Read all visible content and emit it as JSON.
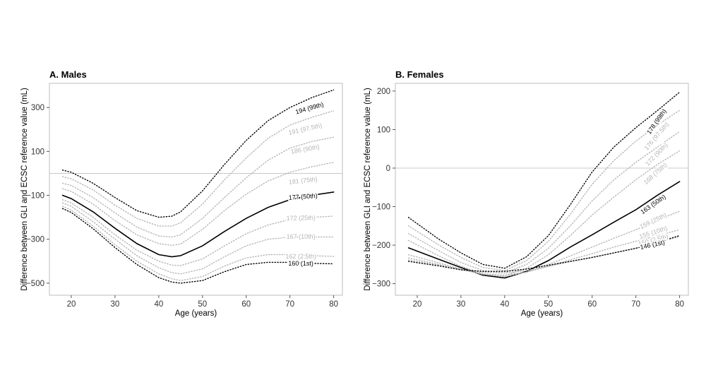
{
  "chart_data": [
    {
      "type": "line",
      "title": "A. Males",
      "xlabel": "Age (years)",
      "ylabel": "Difference between GLI and ECSC reference value (mL)",
      "xlim": [
        15,
        82
      ],
      "ylim": [
        -555,
        410
      ],
      "xticks": [
        20,
        30,
        40,
        50,
        60,
        70,
        80
      ],
      "yticks": [
        300,
        100,
        -100,
        -300,
        -500
      ],
      "reference_line_y": 0,
      "grid": false,
      "series": [
        {
          "name": "194 (99th)",
          "color": "#000000",
          "style": "dotted",
          "x": [
            18,
            20,
            25,
            30,
            35,
            40,
            43,
            45,
            50,
            55,
            60,
            65,
            70,
            75,
            80
          ],
          "y": [
            15,
            5,
            -45,
            -110,
            -170,
            -200,
            -195,
            -175,
            -80,
            40,
            150,
            240,
            300,
            345,
            380
          ]
        },
        {
          "name": "191 (97.5th)",
          "color": "#b5b5b5",
          "style": "dotted",
          "x": [
            18,
            20,
            25,
            30,
            35,
            40,
            43,
            45,
            50,
            55,
            60,
            65,
            70,
            75,
            80
          ],
          "y": [
            -15,
            -25,
            -75,
            -145,
            -205,
            -240,
            -240,
            -225,
            -140,
            -30,
            70,
            160,
            220,
            255,
            285
          ]
        },
        {
          "name": "186 (90th)",
          "color": "#b5b5b5",
          "style": "dotted",
          "x": [
            18,
            20,
            25,
            30,
            35,
            40,
            43,
            45,
            50,
            55,
            60,
            65,
            70,
            75,
            80
          ],
          "y": [
            -45,
            -55,
            -110,
            -180,
            -245,
            -285,
            -290,
            -280,
            -205,
            -110,
            -20,
            60,
            115,
            145,
            165
          ]
        },
        {
          "name": "181 (75th)",
          "color": "#b5b5b5",
          "style": "dotted",
          "x": [
            18,
            20,
            25,
            30,
            35,
            40,
            43,
            45,
            50,
            55,
            60,
            65,
            70,
            75,
            80
          ],
          "y": [
            -70,
            -82,
            -140,
            -215,
            -280,
            -320,
            -328,
            -322,
            -255,
            -170,
            -95,
            -35,
            5,
            30,
            50
          ]
        },
        {
          "name": "177 (50th)",
          "color": "#000000",
          "style": "solid",
          "x": [
            18,
            20,
            25,
            30,
            35,
            40,
            43,
            45,
            50,
            55,
            60,
            65,
            70,
            75,
            80
          ],
          "y": [
            -100,
            -115,
            -175,
            -250,
            -320,
            -370,
            -380,
            -375,
            -330,
            -265,
            -205,
            -155,
            -120,
            -100,
            -85
          ]
        },
        {
          "name": "172 (25th)",
          "color": "#b5b5b5",
          "style": "dotted",
          "x": [
            18,
            20,
            25,
            30,
            35,
            40,
            43,
            45,
            50,
            55,
            60,
            65,
            70,
            75,
            80
          ],
          "y": [
            -120,
            -135,
            -200,
            -280,
            -350,
            -400,
            -418,
            -420,
            -390,
            -330,
            -275,
            -235,
            -210,
            -200,
            -195
          ]
        },
        {
          "name": "167 (10th)",
          "color": "#b5b5b5",
          "style": "dotted",
          "x": [
            18,
            20,
            25,
            30,
            35,
            40,
            43,
            45,
            50,
            55,
            60,
            65,
            70,
            75,
            80
          ],
          "y": [
            -135,
            -150,
            -220,
            -300,
            -375,
            -430,
            -452,
            -458,
            -435,
            -380,
            -330,
            -300,
            -290,
            -290,
            -290
          ]
        },
        {
          "name": "162 (2.5th)",
          "color": "#b5b5b5",
          "style": "dotted",
          "x": [
            18,
            20,
            25,
            30,
            35,
            40,
            43,
            45,
            50,
            55,
            60,
            65,
            70,
            75,
            80
          ],
          "y": [
            -150,
            -168,
            -240,
            -325,
            -400,
            -458,
            -480,
            -488,
            -470,
            -422,
            -385,
            -370,
            -370,
            -375,
            -378
          ]
        },
        {
          "name": "160 (1st)",
          "color": "#000000",
          "style": "dotted",
          "x": [
            18,
            20,
            25,
            30,
            35,
            40,
            43,
            45,
            50,
            55,
            60,
            65,
            70,
            75,
            80
          ],
          "y": [
            -160,
            -178,
            -252,
            -338,
            -415,
            -475,
            -495,
            -500,
            -488,
            -448,
            -415,
            -405,
            -405,
            -410,
            -412
          ]
        }
      ],
      "curve_labels": [
        {
          "text": "194 (99th)",
          "color": "#000000",
          "x": 74.5,
          "y": 295,
          "angle": -16
        },
        {
          "text": "191 (97.5th)",
          "color": "#b5b5b5",
          "x": 73.5,
          "y": 200,
          "angle": -13
        },
        {
          "text": "186 (90th)",
          "color": "#b5b5b5",
          "x": 73.5,
          "y": 108,
          "angle": -10
        },
        {
          "text": "181 (75th)",
          "color": "#b5b5b5",
          "x": 73.0,
          "y": -35,
          "angle": -6
        },
        {
          "text": "177 (50th)",
          "color": "#000000",
          "x": 73.0,
          "y": -108,
          "angle": -4
        },
        {
          "text": "172 (25th)",
          "color": "#b5b5b5",
          "x": 72.5,
          "y": -205,
          "angle": -1
        },
        {
          "text": "167 (10th)",
          "color": "#b5b5b5",
          "x": 72.5,
          "y": -290,
          "angle": 0
        },
        {
          "text": "162 (2.5th)",
          "color": "#b5b5b5",
          "x": 72.5,
          "y": -380,
          "angle": 0
        },
        {
          "text": "160 (1st)",
          "color": "#000000",
          "x": 72.5,
          "y": -412,
          "angle": 0
        }
      ]
    },
    {
      "type": "line",
      "title": "B. Females",
      "xlabel": "Age (years)",
      "ylabel": "Difference between GLI and ECSC reference value (mL)",
      "xlim": [
        15,
        82
      ],
      "ylim": [
        -330,
        220
      ],
      "xticks": [
        20,
        30,
        40,
        50,
        60,
        70,
        80
      ],
      "yticks": [
        200,
        100,
        0,
        -100,
        -200,
        -300
      ],
      "reference_line_y": 0,
      "grid": false,
      "series": [
        {
          "name": "178 (99th)",
          "color": "#000000",
          "style": "dotted",
          "x": [
            18,
            25,
            30,
            35,
            40,
            45,
            50,
            55,
            60,
            65,
            70,
            75,
            80
          ],
          "y": [
            -128,
            -185,
            -220,
            -250,
            -260,
            -230,
            -175,
            -95,
            -10,
            55,
            105,
            150,
            197
          ]
        },
        {
          "name": "176 (97.5th)",
          "color": "#b5b5b5",
          "style": "dotted",
          "x": [
            18,
            25,
            30,
            35,
            40,
            45,
            50,
            55,
            60,
            65,
            70,
            75,
            80
          ],
          "y": [
            -150,
            -200,
            -232,
            -258,
            -266,
            -240,
            -190,
            -120,
            -42,
            20,
            70,
            112,
            150
          ]
        },
        {
          "name": "172 (90th)",
          "color": "#b5b5b5",
          "style": "dotted",
          "x": [
            18,
            25,
            30,
            35,
            40,
            45,
            50,
            55,
            60,
            65,
            70,
            75,
            80
          ],
          "y": [
            -170,
            -215,
            -245,
            -266,
            -272,
            -250,
            -208,
            -150,
            -85,
            -30,
            15,
            55,
            95
          ]
        },
        {
          "name": "168 (75th)",
          "color": "#b5b5b5",
          "style": "dotted",
          "x": [
            18,
            25,
            30,
            35,
            40,
            45,
            50,
            55,
            60,
            65,
            70,
            75,
            80
          ],
          "y": [
            -188,
            -228,
            -255,
            -274,
            -279,
            -260,
            -225,
            -175,
            -122,
            -75,
            -30,
            10,
            45
          ]
        },
        {
          "name": "163 (50th)",
          "color": "#000000",
          "style": "solid",
          "x": [
            18,
            25,
            30,
            35,
            40,
            45,
            50,
            55,
            60,
            65,
            70,
            75,
            80
          ],
          "y": [
            -207,
            -237,
            -258,
            -278,
            -285,
            -268,
            -240,
            -205,
            -173,
            -140,
            -108,
            -70,
            -35
          ]
        },
        {
          "name": "159 (25th)",
          "color": "#b5b5b5",
          "style": "dotted",
          "x": [
            18,
            25,
            30,
            35,
            40,
            45,
            50,
            55,
            60,
            65,
            70,
            75,
            80
          ],
          "y": [
            -225,
            -246,
            -262,
            -276,
            -282,
            -270,
            -250,
            -228,
            -205,
            -182,
            -160,
            -135,
            -112
          ]
        },
        {
          "name": "155 (10th)",
          "color": "#b5b5b5",
          "style": "dotted",
          "x": [
            18,
            25,
            30,
            35,
            40,
            45,
            50,
            55,
            60,
            65,
            70,
            75,
            80
          ],
          "y": [
            -233,
            -250,
            -264,
            -275,
            -278,
            -270,
            -255,
            -238,
            -222,
            -205,
            -190,
            -175,
            -160
          ]
        },
        {
          "name": "150 (2.5th)",
          "color": "#b5b5b5",
          "style": "dotted",
          "x": [
            18,
            25,
            30,
            35,
            40,
            45,
            50,
            55,
            60,
            65,
            70,
            75,
            80
          ],
          "y": [
            -238,
            -252,
            -263,
            -270,
            -272,
            -266,
            -255,
            -243,
            -232,
            -220,
            -208,
            -193,
            -178
          ]
        },
        {
          "name": "146 (1st)",
          "color": "#000000",
          "style": "dotted",
          "x": [
            18,
            25,
            30,
            35,
            40,
            45,
            50,
            55,
            60,
            65,
            70,
            75,
            80
          ],
          "y": [
            -242,
            -254,
            -264,
            -268,
            -268,
            -262,
            -252,
            -242,
            -232,
            -220,
            -208,
            -193,
            -175
          ]
        }
      ],
      "curve_labels": [
        {
          "text": "178 (99th)",
          "color": "#000000",
          "x": 74.8,
          "y": 120,
          "angle": -55
        },
        {
          "text": "176 (97.5th)",
          "color": "#b5b5b5",
          "x": 74.8,
          "y": 82,
          "angle": -50
        },
        {
          "text": "172 (90th)",
          "color": "#b5b5b5",
          "x": 74.8,
          "y": 35,
          "angle": -46
        },
        {
          "text": "168 (75th)",
          "color": "#b5b5b5",
          "x": 74.5,
          "y": -15,
          "angle": -42
        },
        {
          "text": "163 (50th)",
          "color": "#000000",
          "x": 74.0,
          "y": -95,
          "angle": -35
        },
        {
          "text": "159 (25th)",
          "color": "#b5b5b5",
          "x": 74.0,
          "y": -138,
          "angle": -26
        },
        {
          "text": "155 (10th)",
          "color": "#b5b5b5",
          "x": 74.0,
          "y": -168,
          "angle": -18
        },
        {
          "text": "150 (2.5th)",
          "color": "#b5b5b5",
          "x": 74.0,
          "y": -188,
          "angle": -15
        },
        {
          "text": "146 (1st)",
          "color": "#000000",
          "x": 73.8,
          "y": -200,
          "angle": -12
        }
      ]
    }
  ]
}
